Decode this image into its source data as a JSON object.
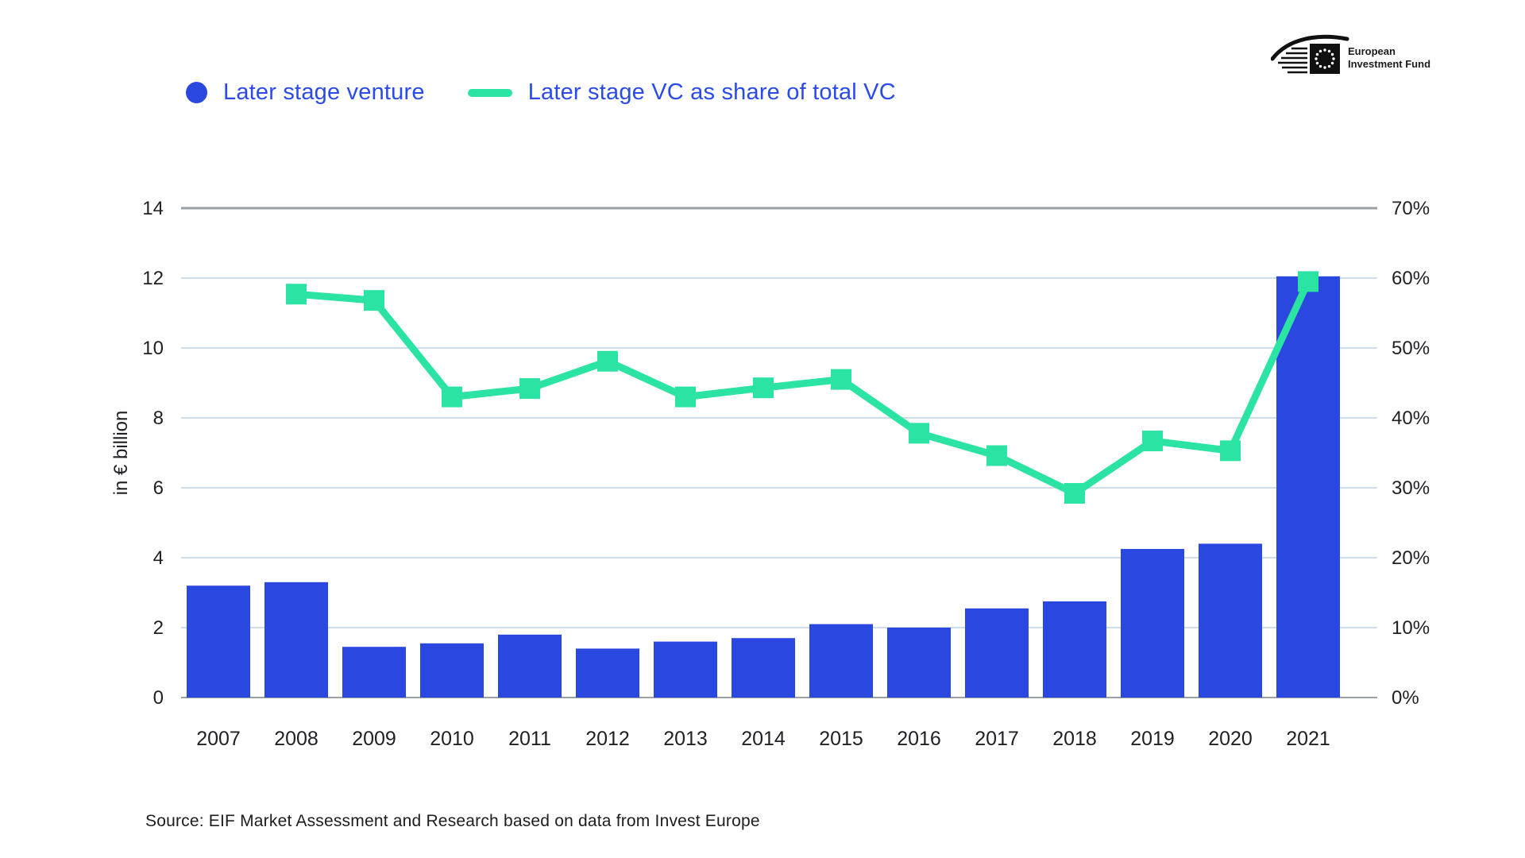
{
  "page": {
    "background": "#ffffff"
  },
  "legend": {
    "items": [
      {
        "label": "Later stage venture",
        "swatch": "circle",
        "color": "#2A47DF"
      },
      {
        "label": "Later stage VC as share of total VC",
        "swatch": "line",
        "color": "#2BE3A3"
      }
    ],
    "text_color": "#2B4AEB"
  },
  "logo": {
    "line1": "European",
    "line2": "Investment Fund"
  },
  "source": {
    "text": "Source: EIF Market Assessment and Research based on data from Invest Europe"
  },
  "chart_data": {
    "type": "bar",
    "subtype": "bar+line-dual-axis",
    "categories": [
      "2007",
      "2008",
      "2009",
      "2010",
      "2011",
      "2012",
      "2013",
      "2014",
      "2015",
      "2016",
      "2017",
      "2018",
      "2019",
      "2020",
      "2021"
    ],
    "series": [
      {
        "name": "Later stage venture",
        "type": "bar",
        "axis": "left",
        "unit": "EUR billion",
        "color": "#2A47DF",
        "values": [
          3.2,
          3.3,
          1.45,
          1.55,
          1.8,
          1.4,
          1.6,
          1.7,
          2.1,
          2.0,
          2.55,
          2.75,
          4.25,
          4.4,
          12.05
        ]
      },
      {
        "name": "Later stage VC as share of total VC",
        "type": "line",
        "axis": "right",
        "unit": "%",
        "color": "#2BE3A3",
        "marker": "square",
        "values": [
          null,
          57.7,
          56.8,
          43.0,
          44.2,
          48.1,
          43.0,
          44.3,
          45.5,
          37.8,
          34.6,
          29.2,
          36.7,
          35.3,
          59.5
        ]
      }
    ],
    "left_axis": {
      "title": "in € billion",
      "min": 0,
      "max": 14,
      "ticks": [
        0,
        2,
        4,
        6,
        8,
        10,
        12,
        14
      ]
    },
    "right_axis": {
      "min": 0,
      "max": 70,
      "ticks": [
        0,
        10,
        20,
        30,
        40,
        50,
        60,
        70
      ],
      "tick_suffix": "%"
    },
    "grid": {
      "normal_color": "#cfdcec",
      "top_color": "#9aa0a6",
      "zero_color": "#9aa0a6"
    },
    "text_color": "#1f2023",
    "legend_position": "top-left",
    "xlabel": "",
    "ylabel": "in € billion"
  }
}
